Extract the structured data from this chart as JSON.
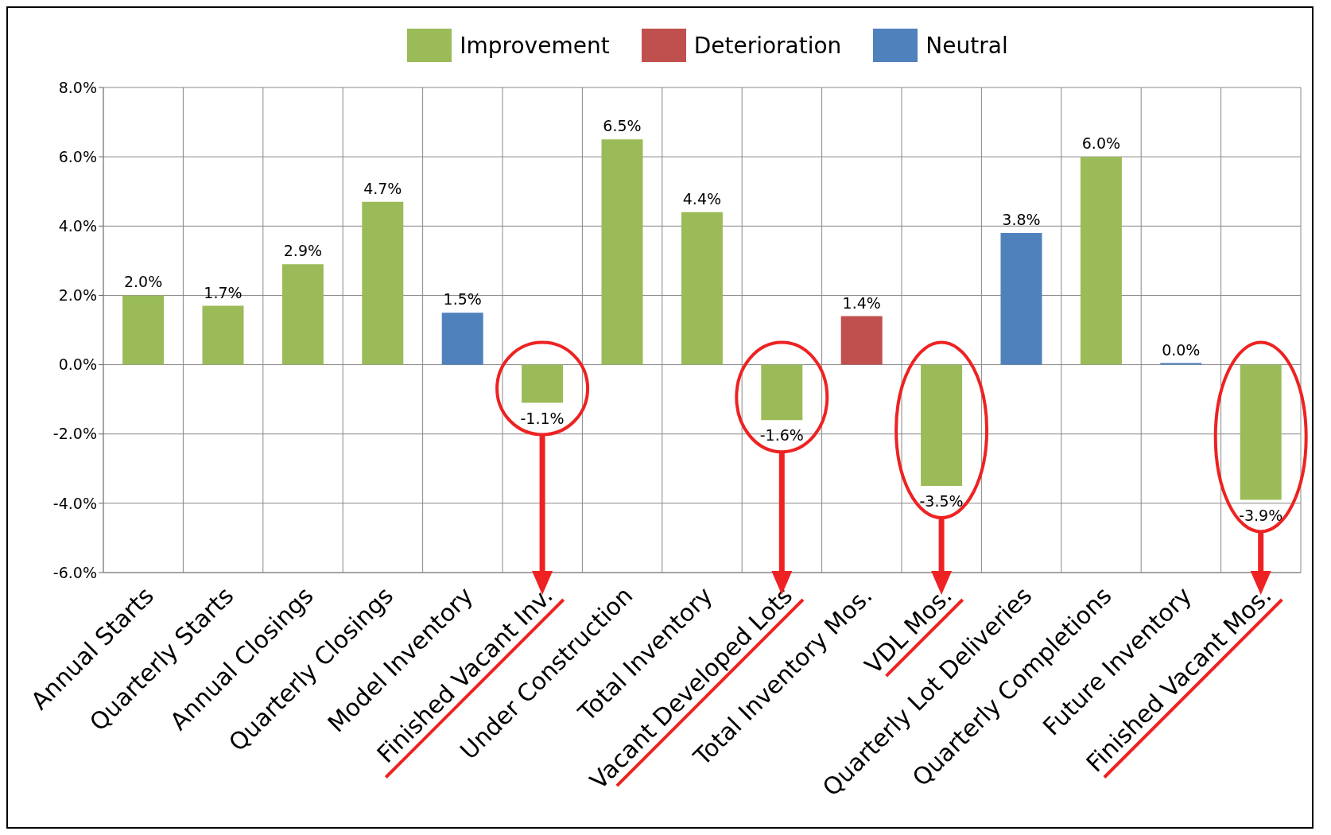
{
  "chart_data": {
    "type": "bar",
    "stacked": true,
    "categories": [
      "Annual Starts",
      "Quarterly Starts",
      "Annual Closings",
      "Quarterly Closings",
      "Model Inventory",
      "Finished Vacant Inv.",
      "Under Construction",
      "Total Inventory",
      "Vacant Developed Lots",
      "Total Inventory Mos.",
      "VDL Mos.",
      "Quarterly Lot Deliveries",
      "Quarterly Completions",
      "Future Inventory",
      "Finished Vacant Mos."
    ],
    "series": [
      {
        "name": "Improvement",
        "color": "#9bbb59",
        "values": [
          2.0,
          1.7,
          2.9,
          4.7,
          null,
          -1.1,
          6.5,
          4.4,
          -1.6,
          null,
          -3.5,
          null,
          6.0,
          null,
          -3.9
        ],
        "value_labels": [
          "2.0%",
          "1.7%",
          "2.9%",
          "4.7%",
          null,
          "-1.1%",
          "6.5%",
          "4.4%",
          "-1.6%",
          null,
          "-3.5%",
          null,
          "6.0%",
          null,
          "-3.9%"
        ]
      },
      {
        "name": "Deterioration",
        "color": "#c0504d",
        "values": [
          null,
          null,
          null,
          null,
          null,
          null,
          null,
          null,
          null,
          1.4,
          null,
          null,
          null,
          null,
          null
        ],
        "value_labels": [
          null,
          null,
          null,
          null,
          null,
          null,
          null,
          null,
          null,
          "1.4%",
          null,
          null,
          null,
          null,
          null
        ]
      },
      {
        "name": "Neutral",
        "color": "#4f81bd",
        "values": [
          null,
          null,
          null,
          null,
          1.5,
          null,
          null,
          null,
          null,
          null,
          null,
          3.8,
          null,
          0.0,
          null
        ],
        "value_labels": [
          null,
          null,
          null,
          null,
          "1.5%",
          null,
          null,
          null,
          null,
          null,
          null,
          "3.8%",
          null,
          "0.0%",
          null
        ]
      }
    ],
    "ylim": [
      -6,
      8
    ],
    "yticks": [
      {
        "value": -6,
        "label": "-6.0%"
      },
      {
        "value": -4,
        "label": "-4.0%"
      },
      {
        "value": -2,
        "label": "-2.0%"
      },
      {
        "value": 0,
        "label": "0.0%"
      },
      {
        "value": 2,
        "label": "2.0%"
      },
      {
        "value": 4,
        "label": "4.0%"
      },
      {
        "value": 6,
        "label": "6.0%"
      },
      {
        "value": 8,
        "label": "8.0%"
      }
    ],
    "grid": true,
    "legend": "top"
  }
}
